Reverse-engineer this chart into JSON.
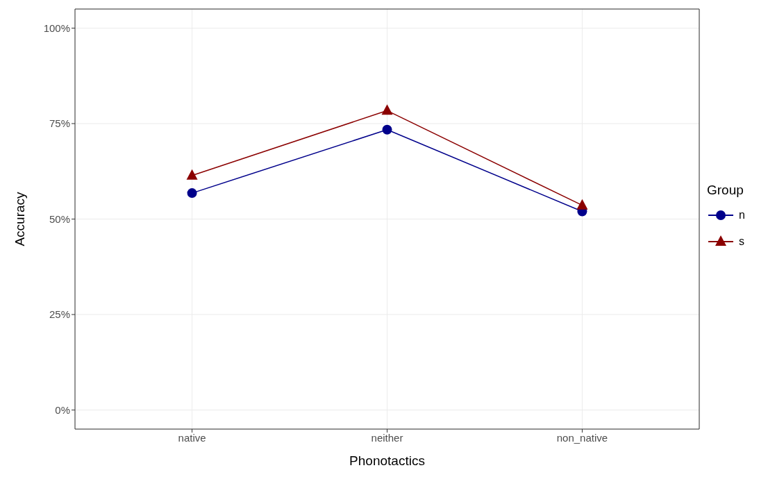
{
  "chart_data": {
    "type": "line",
    "xlabel": "Phonotactics",
    "ylabel": "Accuracy",
    "legend_title": "Group",
    "legend": "right",
    "grid": true,
    "categories": [
      "native",
      "neither",
      "non_native"
    ],
    "series": [
      {
        "name": "n",
        "color": "#00008b",
        "marker": "circle",
        "values": [
          56.8,
          73.4,
          52.0
        ]
      },
      {
        "name": "s",
        "color": "#8b0000",
        "marker": "triangle",
        "values": [
          61.4,
          78.4,
          53.6
        ]
      }
    ],
    "ylim": [
      -5,
      105
    ],
    "yticks": [
      {
        "value": 0,
        "label": "0%"
      },
      {
        "value": 25,
        "label": "25%"
      },
      {
        "value": 50,
        "label": "50%"
      },
      {
        "value": 75,
        "label": "75%"
      },
      {
        "value": 100,
        "label": "100%"
      }
    ]
  }
}
